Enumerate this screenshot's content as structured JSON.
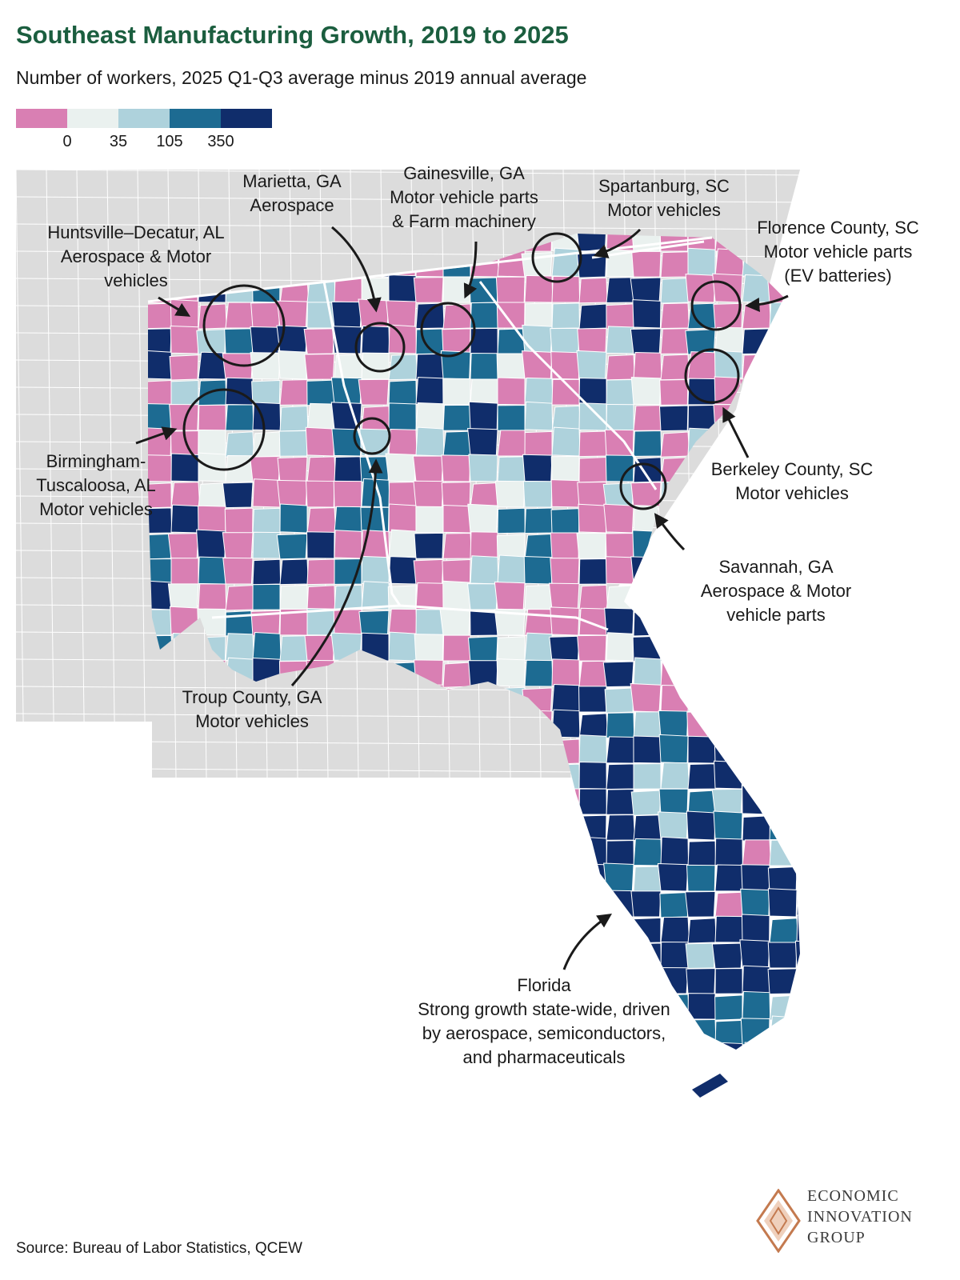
{
  "title": "Southeast Manufacturing Growth, 2019 to 2025",
  "subtitle": "Number of workers, 2025 Q1-Q3 average minus 2019 annual average",
  "legend": {
    "colors": [
      "#d97fb3",
      "#eaf1ef",
      "#aed2dc",
      "#1d6b92",
      "#102d6b"
    ],
    "ticks": [
      "0",
      "35",
      "105",
      "350"
    ]
  },
  "colors": {
    "negative": "#d97fb3",
    "low": "#eaf1ef",
    "mid": "#aed2dc",
    "high": "#1d6b92",
    "very_high": "#102d6b",
    "context_land": "#dcdcdc",
    "title_green": "#1b5e3f"
  },
  "annotations": {
    "huntsville": {
      "lines": [
        "Huntsville–Decatur, AL",
        "Aerospace & Motor",
        "vehicles"
      ]
    },
    "marietta": {
      "lines": [
        "Marietta, GA",
        "Aerospace"
      ]
    },
    "gainesville": {
      "lines": [
        "Gainesville, GA",
        "Motor vehicle parts",
        "& Farm machinery"
      ]
    },
    "spartanburg": {
      "lines": [
        "Spartanburg, SC",
        "Motor vehicles"
      ]
    },
    "florence": {
      "lines": [
        "Florence County, SC",
        "Motor vehicle parts",
        "(EV batteries)"
      ]
    },
    "birmingham": {
      "lines": [
        "Birmingham-",
        "Tuscaloosa, AL",
        "Motor vehicles"
      ]
    },
    "berkeley": {
      "lines": [
        "Berkeley County, SC",
        "Motor vehicles"
      ]
    },
    "savannah": {
      "lines": [
        "Savannah, GA",
        "Aerospace & Motor",
        "vehicle parts"
      ]
    },
    "troup": {
      "lines": [
        "Troup County, GA",
        "Motor vehicles"
      ]
    },
    "florida": {
      "lines": [
        "Florida",
        "Strong growth state-wide, driven",
        "by aerospace, semiconductors,",
        "and pharmaceuticals"
      ]
    }
  },
  "source": "Source: Bureau of Labor Statistics, QCEW",
  "logo": {
    "lines": [
      "ECONOMIC",
      "INNOVATION",
      "GROUP"
    ],
    "icon": "diamond-logo-icon"
  }
}
